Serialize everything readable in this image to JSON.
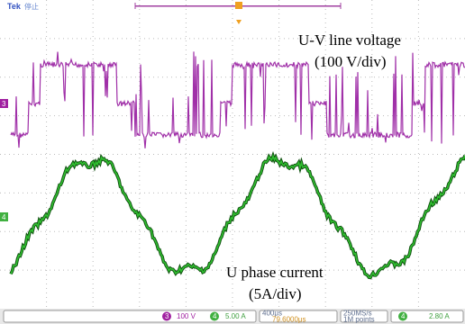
{
  "header": {
    "brand": "Tek",
    "status": "停止"
  },
  "annotations": {
    "voltage_label": "U-V line voltage",
    "voltage_scale": "(100 V/div)",
    "current_label": "U phase current",
    "current_scale": "(5A/div)"
  },
  "markers": {
    "ch3": "3",
    "ch4": "4"
  },
  "status_bar": {
    "ch3_label": "3",
    "ch3_scale": "100 V",
    "ch4_label": "4",
    "ch4_scale": "5.00 A",
    "timebase": "400μs",
    "trigger_delay": "79.6000μs",
    "sample_rate": "250MS/s",
    "record_length": "1M points",
    "trigger_channel": "4",
    "trigger_level": "2.80 A"
  }
}
